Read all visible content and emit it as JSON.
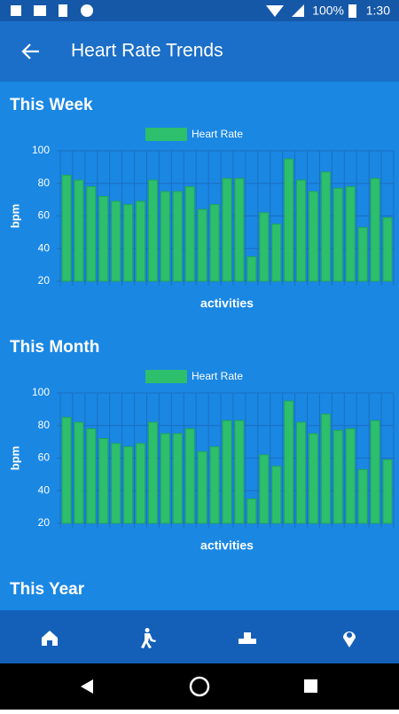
{
  "status_bar": {
    "battery": "100%",
    "time": "1:30"
  },
  "app_bar": {
    "title": "Heart Rate Trends"
  },
  "sections": [
    "This Week",
    "This Month",
    "This Year"
  ],
  "chart_data": [
    {
      "type": "bar",
      "legend": "top",
      "grid": true,
      "color": "#2dbf6c",
      "x_label": "activities",
      "y_label": "bpm",
      "categories": [
        null,
        null,
        null,
        null,
        null,
        null,
        null,
        null,
        null,
        null,
        null,
        null,
        null,
        null,
        null,
        null,
        null,
        null,
        null,
        null,
        null,
        null,
        null,
        null,
        null,
        null,
        null
      ],
      "series": [
        {
          "name": "Heart Rate",
          "color": "#2dbf6c",
          "values": [
            85,
            82,
            78,
            72,
            69,
            67,
            69,
            82,
            75,
            75,
            78,
            64,
            67,
            83,
            83,
            35,
            62,
            55,
            95,
            82,
            75,
            87,
            77,
            78,
            53,
            83,
            59
          ]
        }
      ],
      "ylim": [
        20,
        100
      ],
      "yticks": [
        20,
        40,
        60,
        80,
        100
      ]
    },
    {
      "type": "bar",
      "legend": "top",
      "grid": true,
      "color": "#2dbf6c",
      "x_label": "activities",
      "y_label": "bpm",
      "categories": [
        null,
        null,
        null,
        null,
        null,
        null,
        null,
        null,
        null,
        null,
        null,
        null,
        null,
        null,
        null,
        null,
        null,
        null,
        null,
        null,
        null,
        null,
        null,
        null,
        null,
        null,
        null
      ],
      "series": [
        {
          "name": "Heart Rate",
          "color": "#2dbf6c",
          "values": [
            85,
            82,
            78,
            72,
            69,
            67,
            69,
            82,
            75,
            75,
            78,
            64,
            67,
            83,
            83,
            35,
            62,
            55,
            95,
            82,
            75,
            87,
            77,
            78,
            53,
            83,
            59
          ]
        }
      ],
      "ylim": [
        20,
        100
      ],
      "yticks": [
        20,
        40,
        60,
        80,
        100
      ]
    }
  ]
}
